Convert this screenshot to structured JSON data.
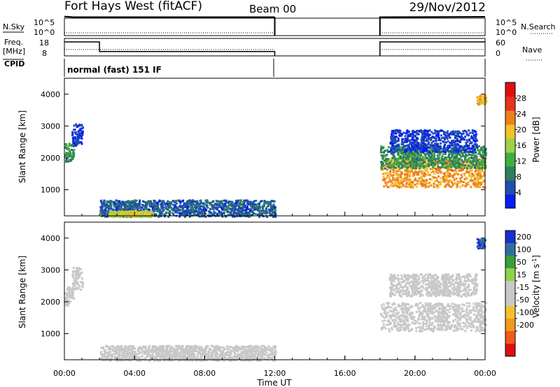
{
  "header": {
    "title": "Fort Hays West (fitACF)",
    "beam": "Beam 00",
    "date": "29/Nov/2012"
  },
  "nsky_panel": {
    "left_label": "N.Sky",
    "left_ticks": [
      "10^5",
      "10^0"
    ],
    "right_ticks": [
      "10^5",
      "10^0"
    ],
    "right_label": "N.Search"
  },
  "freq_panel": {
    "left_label_line1": "Freq.",
    "left_label_line2": "[MHz]",
    "left_ticks": [
      "18",
      "8"
    ],
    "right_ticks": [
      "60",
      "0"
    ],
    "right_label": "Nave",
    "cpid_label": "CPID"
  },
  "cpid_text": "normal (fast) 151 IF",
  "colors": {
    "power_scale": [
      "#0a1cf0",
      "#1f4fb0",
      "#2e7f5a",
      "#3fae3f",
      "#9ed14a",
      "#f3c22a",
      "#f07f1c",
      "#e8331c",
      "#e01010"
    ],
    "velocity_scale": [
      "#e01010",
      "#f05a1a",
      "#f39a1e",
      "#f3c22a",
      "#c8c8c8",
      "#c8c8c8",
      "#8fd24a",
      "#3a9e3a",
      "#2f6fa0",
      "#1a2fd0"
    ]
  },
  "chart_data": [
    {
      "type": "line",
      "title": "",
      "series": [
        {
          "name": "N.Sky",
          "x": [
            "00:00",
            "00:30",
            "12:00",
            "18:00",
            "24:00"
          ],
          "values": [
            300000,
            200000,
            200000,
            200000,
            250000
          ]
        }
      ],
      "xlim": [
        "00:00",
        "24:00"
      ],
      "ylog": true,
      "gaps": [
        [
          "12:00",
          "18:00"
        ]
      ]
    },
    {
      "type": "line",
      "series": [
        {
          "name": "Freq.",
          "x": [
            "00:00",
            "02:00",
            "02:00",
            "12:00",
            "18:00",
            "24:00"
          ],
          "values": [
            16,
            16,
            10.5,
            10.5,
            16,
            16
          ]
        },
        {
          "name": "Nave",
          "x": [
            "00:00",
            "12:00",
            "18:00",
            "24:00"
          ],
          "values": [
            22,
            22,
            22,
            22
          ]
        }
      ],
      "ylim_left": [
        8,
        18
      ],
      "ylim_right": [
        0,
        60
      ],
      "gaps": [
        [
          "12:00",
          "18:00"
        ]
      ]
    },
    {
      "type": "heatmap",
      "quantity": "Power",
      "xlabel": "",
      "ylabel": "Slant Range [km]",
      "xlim": [
        "00:00",
        "24:00"
      ],
      "ylim": [
        180,
        4500
      ],
      "yticks": [
        1000,
        2000,
        3000,
        4000
      ],
      "colorbar_label": "Power [dB]",
      "colorbar_ticks": [
        4,
        8,
        12,
        16,
        20,
        24,
        28
      ],
      "colorbar_range": [
        0,
        32
      ],
      "regions": [
        {
          "t": [
            0.0,
            0.5
          ],
          "r": [
            1900,
            2500
          ],
          "value": 10
        },
        {
          "t": [
            0.4,
            1.0
          ],
          "r": [
            2400,
            3100
          ],
          "value": 4
        },
        {
          "t": [
            2.0,
            12.0
          ],
          "r": [
            180,
            700
          ],
          "value": 6
        },
        {
          "t": [
            2.5,
            5.0
          ],
          "r": [
            180,
            350
          ],
          "value": 18
        },
        {
          "t": [
            18.0,
            24.0
          ],
          "r": [
            1100,
            2000
          ],
          "value": 22
        },
        {
          "t": [
            18.0,
            24.0
          ],
          "r": [
            1700,
            2400
          ],
          "value": 10
        },
        {
          "t": [
            18.5,
            23.5
          ],
          "r": [
            2200,
            2900
          ],
          "value": 4
        },
        {
          "t": [
            23.5,
            24.0
          ],
          "r": [
            3700,
            4000
          ],
          "value": 20
        }
      ]
    },
    {
      "type": "heatmap",
      "quantity": "Velocity",
      "xlabel": "Time UT",
      "ylabel": "Slant Range [km]",
      "xlim": [
        "00:00",
        "24:00"
      ],
      "ylim": [
        180,
        4500
      ],
      "xticks": [
        "00:00",
        "04:00",
        "08:00",
        "12:00",
        "16:00",
        "20:00",
        "00:00"
      ],
      "yticks": [
        1000,
        2000,
        3000,
        4000
      ],
      "colorbar_label_main": "Velocity",
      "colorbar_label_unit": "[m s",
      "colorbar_label_exp": "-1",
      "colorbar_label_close": "]",
      "colorbar_ticks": [
        "200",
        "100",
        "50",
        "15",
        "-15",
        "-50",
        "-100",
        "-200"
      ],
      "regions": [
        {
          "t": [
            0.0,
            0.5
          ],
          "r": [
            1900,
            2500
          ],
          "value": 0
        },
        {
          "t": [
            0.4,
            1.0
          ],
          "r": [
            2400,
            3100
          ],
          "value": 0
        },
        {
          "t": [
            2.0,
            12.0
          ],
          "r": [
            180,
            650
          ],
          "value": -40
        },
        {
          "t": [
            18.0,
            24.0
          ],
          "r": [
            1100,
            2000
          ],
          "value": 0
        },
        {
          "t": [
            18.5,
            23.5
          ],
          "r": [
            2200,
            2900
          ],
          "value": 0
        },
        {
          "t": [
            23.5,
            24.0
          ],
          "r": [
            3700,
            4000
          ],
          "value": 200
        }
      ]
    }
  ]
}
